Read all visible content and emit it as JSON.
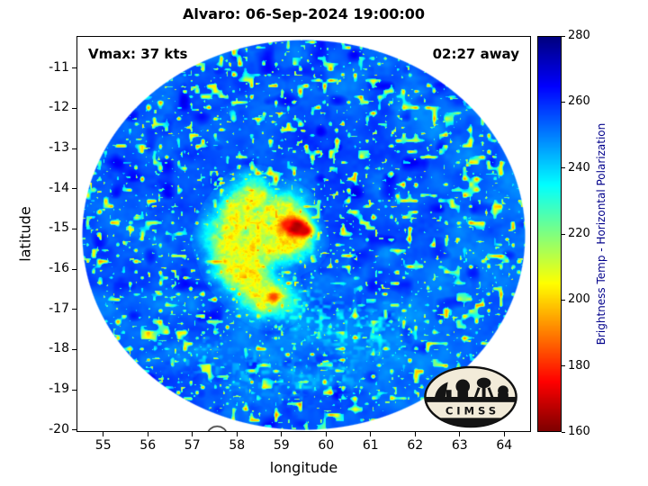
{
  "title": "Alvaro: 06-Sep-2024 19:00:00",
  "annotations": {
    "vmax": "Vmax: 37 kts",
    "eta": "02:27 away"
  },
  "axes": {
    "xlabel": "longitude",
    "ylabel": "latitude",
    "xticks": [
      55,
      56,
      57,
      58,
      59,
      60,
      61,
      62,
      63,
      64
    ],
    "yticks": [
      -11,
      -12,
      -13,
      -14,
      -15,
      -16,
      -17,
      -18,
      -19,
      -20
    ],
    "xlim": [
      54.4,
      64.6
    ],
    "ylim": [
      -20.05,
      -10.2
    ]
  },
  "colorbar": {
    "label": "Brightness Temp - Horizontal Polarization",
    "ticks": [
      160,
      180,
      200,
      220,
      240,
      260,
      280
    ],
    "min": 160,
    "max": 280
  },
  "logo": {
    "text": "CIMSS"
  },
  "chart_data": {
    "type": "heatmap",
    "title": "Alvaro: 06-Sep-2024 19:00:00",
    "xlabel": "longitude",
    "ylabel": "latitude",
    "value_label": "Brightness Temp - Horizontal Polarization (K)",
    "xlim": [
      54.4,
      64.6
    ],
    "ylim": [
      -20.05,
      -10.2
    ],
    "value_range_k": [
      160,
      280
    ],
    "colormap": "reversed-jet (160 K = dark red, 280 K = dark blue)",
    "background_temp_k": 253.5,
    "swath": {
      "center_lon": 59.5,
      "center_lat": -15.15,
      "radius_lon": 5.0,
      "radius_lat": 4.88
    },
    "storm": {
      "name": "Alvaro",
      "vmax_kts": 37,
      "center_lon": 59.2,
      "center_lat": -15.3,
      "min_brightness_temp_k": 163,
      "warm_band_path": [
        [
          58.35,
          -14.15
        ],
        [
          57.95,
          -14.7
        ],
        [
          57.75,
          -15.3
        ],
        [
          57.95,
          -15.95
        ],
        [
          58.35,
          -16.45
        ],
        [
          58.78,
          -16.78
        ],
        [
          58.5,
          -15.5
        ],
        [
          58.9,
          -15.0
        ],
        [
          59.3,
          -15.35
        ],
        [
          59.1,
          -14.6
        ]
      ],
      "hot_spots": [
        {
          "lon": 59.32,
          "lat": -14.95,
          "temp_k": 163,
          "radius_deg": 0.2
        },
        {
          "lon": 59.52,
          "lat": -15.05,
          "temp_k": 170,
          "radius_deg": 0.13
        },
        {
          "lon": 59.12,
          "lat": -14.88,
          "temp_k": 178,
          "radius_deg": 0.1
        },
        {
          "lon": 58.82,
          "lat": -16.7,
          "temp_k": 183,
          "radius_deg": 0.09
        }
      ],
      "speckle_bands": [
        {
          "path": [
            [
              59.4,
              -17.0
            ],
            [
              60.0,
              -17.3
            ],
            [
              60.6,
              -17.5
            ],
            [
              61.2,
              -17.55
            ]
          ],
          "temp_k": 222,
          "seed": 5.2
        },
        {
          "path": [
            [
              57.3,
              -18.2
            ],
            [
              58.3,
              -18.6
            ],
            [
              59.3,
              -18.8
            ],
            [
              60.2,
              -18.6
            ]
          ],
          "temp_k": 236,
          "seed": 11.8
        }
      ]
    },
    "coastlines": [
      {
        "name": "Mauritius",
        "lon": 57.55,
        "lat": -20.15,
        "radius_deg": 0.22
      }
    ]
  }
}
